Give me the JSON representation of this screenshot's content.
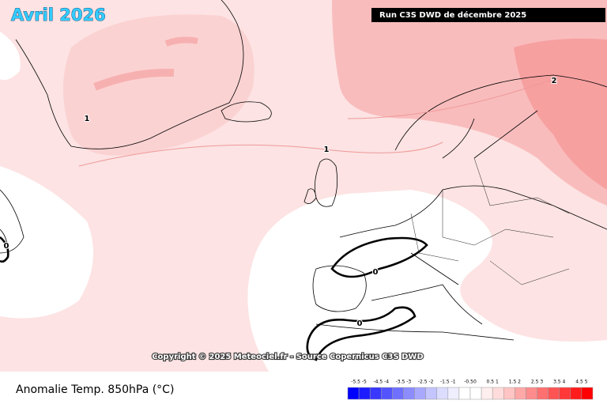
{
  "header": {
    "title": "Avril 2026",
    "run": "Run C3S DWD de décembre 2025"
  },
  "map": {
    "contour_labels": [
      "1",
      "1",
      "2",
      "0",
      "0",
      "0"
    ]
  },
  "footer": {
    "copyright": "Copyright © 2025 Meteociel.fr - Source Copernicus C3S DWD",
    "variable": "Anomalie Temp. 850hPa (°C)"
  },
  "legend": {
    "labels": [
      "-5.5 -5",
      "-4.5 -4",
      "-3.5 -3",
      "-2.5 -2",
      "-1.5 -1",
      "-0.50",
      "0.5 1",
      "1.5 2",
      "2.5 3",
      "3.5 4",
      "4.5 5"
    ],
    "colors": [
      "#0000ff",
      "#1c1cff",
      "#3838ff",
      "#5454ff",
      "#7070ff",
      "#8c8cff",
      "#a8a8ff",
      "#c4c4ff",
      "#dcdcff",
      "#eeeeff",
      "#ffffff",
      "#ffffff",
      "#ffeeee",
      "#ffdcdc",
      "#ffc4c4",
      "#ffa8a8",
      "#ff8c8c",
      "#ff7070",
      "#ff5454",
      "#ff3838",
      "#ff1c1c",
      "#ff0000"
    ]
  }
}
